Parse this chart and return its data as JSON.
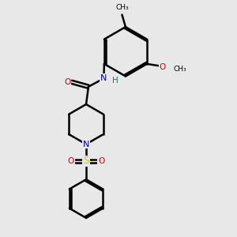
{
  "bg_color": "#e8e8e8",
  "bond_color": "#000000",
  "n_color": "#0000cc",
  "o_color": "#cc0000",
  "s_color": "#cccc00",
  "h_color": "#008080",
  "lw": 1.8,
  "dbo": 0.055,
  "xlim": [
    0,
    10
  ],
  "ylim": [
    0,
    10
  ]
}
